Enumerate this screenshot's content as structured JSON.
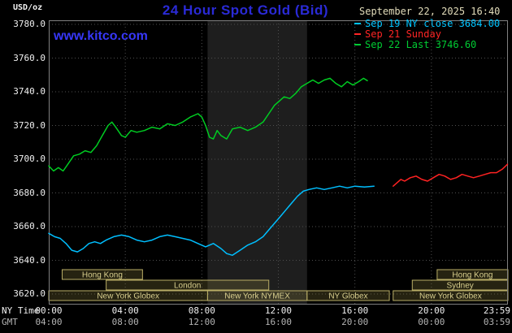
{
  "header": {
    "units_label": "USD/oz",
    "title": "24 Hour Spot Gold (Bid)",
    "timestamp": "September 22, 2025 16:40",
    "watermark": "www.kitco.com",
    "legend": [
      {
        "label": "Sep 19 NY close 3684.00",
        "color": "#00c4ff"
      },
      {
        "label": "Sep 21 Sunday",
        "color": "#ff2525"
      },
      {
        "label": "Sep 22 Last 3746.60",
        "color": "#00cc33"
      }
    ]
  },
  "axes": {
    "y_ticks": [
      "3780.0",
      "3760.0",
      "3740.0",
      "3720.0",
      "3700.0",
      "3680.0",
      "3660.0",
      "3640.0",
      "3620.0"
    ],
    "x_rows": [
      {
        "label": "NY Time",
        "ticks": [
          "00:00",
          "04:00",
          "08:00",
          "12:00",
          "16:00",
          "20:00",
          "23:59"
        ]
      },
      {
        "label": "GMT",
        "ticks": [
          "04:00",
          "08:00",
          "12:00",
          "16:00",
          "20:00",
          "00:00",
          "03:59"
        ]
      }
    ]
  },
  "sessions": [
    {
      "row": 1,
      "start_h": 0.7,
      "end_h": 4.9,
      "label": "Hong Kong"
    },
    {
      "row": 1,
      "start_h": 20.3,
      "end_h": 24.0,
      "label": "Hong Kong"
    },
    {
      "row": 2,
      "start_h": 3.0,
      "end_h": 11.5,
      "label": "London"
    },
    {
      "row": 2,
      "start_h": 19.0,
      "end_h": 24.0,
      "label": "Sydney"
    },
    {
      "row": 3,
      "start_h": 0.0,
      "end_h": 8.3,
      "label": "New York Globex"
    },
    {
      "row": 3,
      "start_h": 8.3,
      "end_h": 13.5,
      "label": "New York NYMEX"
    },
    {
      "row": 3,
      "start_h": 13.5,
      "end_h": 17.8,
      "label": "NY Globex"
    },
    {
      "row": 3,
      "start_h": 18.0,
      "end_h": 24.0,
      "label": "New York Globex"
    }
  ],
  "colors": {
    "background": "#000000",
    "frame": "#808080",
    "grid": "#4f4f4f",
    "nymex_band": "#1e1e1e",
    "title_blue": "#2a2ad6",
    "link_blue": "#3737f8",
    "timestamp_cream": "#e2dcba",
    "axis_text": "#f0f0f0",
    "gmt_text": "#b4b4b4",
    "session_border": "#b9ae66",
    "session_fill": "rgba(125,115,55,0.30)",
    "session_text": "#d9cf8e"
  },
  "chart_data": {
    "type": "line",
    "title": "24 Hour Spot Gold (Bid)",
    "xlabel": "NY Time",
    "ylabel": "USD/oz",
    "ylim": [
      3620,
      3780
    ],
    "xlim_hours": [
      0,
      24
    ],
    "x_ticks_hours": [
      0,
      4,
      8,
      12,
      16,
      20,
      24
    ],
    "grid": true,
    "legend_position": "top-right",
    "highlight_band_hours": [
      8.3,
      13.5
    ],
    "series": [
      {
        "name": "Sep 19 NY close",
        "color": "#00bfff",
        "close_value": 3684.0,
        "points": [
          [
            0,
            3656
          ],
          [
            0.3,
            3654
          ],
          [
            0.6,
            3653
          ],
          [
            0.9,
            3650
          ],
          [
            1.2,
            3646
          ],
          [
            1.5,
            3645
          ],
          [
            1.8,
            3647
          ],
          [
            2.1,
            3650
          ],
          [
            2.4,
            3651
          ],
          [
            2.7,
            3650
          ],
          [
            3,
            3652
          ],
          [
            3.4,
            3654
          ],
          [
            3.8,
            3655
          ],
          [
            4.2,
            3654
          ],
          [
            4.6,
            3652
          ],
          [
            5,
            3651
          ],
          [
            5.4,
            3652
          ],
          [
            5.8,
            3654
          ],
          [
            6.2,
            3655
          ],
          [
            6.6,
            3654
          ],
          [
            7,
            3653
          ],
          [
            7.4,
            3652
          ],
          [
            7.8,
            3650
          ],
          [
            8.2,
            3648
          ],
          [
            8.6,
            3650
          ],
          [
            9,
            3647
          ],
          [
            9.3,
            3644
          ],
          [
            9.6,
            3643
          ],
          [
            10,
            3646
          ],
          [
            10.4,
            3649
          ],
          [
            10.8,
            3651
          ],
          [
            11.2,
            3654
          ],
          [
            11.5,
            3658
          ],
          [
            11.8,
            3662
          ],
          [
            12.1,
            3666
          ],
          [
            12.4,
            3670
          ],
          [
            12.7,
            3674
          ],
          [
            13,
            3678
          ],
          [
            13.3,
            3681
          ],
          [
            13.6,
            3682
          ],
          [
            14,
            3683
          ],
          [
            14.4,
            3682
          ],
          [
            14.8,
            3683
          ],
          [
            15.2,
            3684
          ],
          [
            15.6,
            3683
          ],
          [
            16,
            3684
          ],
          [
            16.5,
            3683.5
          ],
          [
            17,
            3684
          ]
        ]
      },
      {
        "name": "Sep 21 Sunday",
        "color": "#ff2222",
        "points": [
          [
            18,
            3684
          ],
          [
            18.2,
            3686
          ],
          [
            18.4,
            3688
          ],
          [
            18.6,
            3687
          ],
          [
            18.9,
            3689
          ],
          [
            19.2,
            3690
          ],
          [
            19.5,
            3688
          ],
          [
            19.8,
            3687
          ],
          [
            20.1,
            3689
          ],
          [
            20.4,
            3691
          ],
          [
            20.7,
            3690
          ],
          [
            21,
            3688
          ],
          [
            21.3,
            3689
          ],
          [
            21.6,
            3691
          ],
          [
            21.9,
            3690
          ],
          [
            22.2,
            3689
          ],
          [
            22.5,
            3690
          ],
          [
            22.8,
            3691
          ],
          [
            23.1,
            3692
          ],
          [
            23.4,
            3692
          ],
          [
            23.7,
            3694
          ],
          [
            23.98,
            3697
          ]
        ]
      },
      {
        "name": "Sep 22 Last",
        "color": "#00cc22",
        "last_value": 3746.6,
        "points": [
          [
            0,
            3696
          ],
          [
            0.25,
            3693
          ],
          [
            0.5,
            3695
          ],
          [
            0.75,
            3693
          ],
          [
            1,
            3697
          ],
          [
            1.3,
            3702
          ],
          [
            1.6,
            3703
          ],
          [
            1.9,
            3705
          ],
          [
            2.2,
            3704
          ],
          [
            2.5,
            3708
          ],
          [
            2.8,
            3714
          ],
          [
            3.1,
            3720
          ],
          [
            3.3,
            3722
          ],
          [
            3.5,
            3719
          ],
          [
            3.8,
            3714
          ],
          [
            4,
            3713
          ],
          [
            4.3,
            3717
          ],
          [
            4.6,
            3716
          ],
          [
            5,
            3717
          ],
          [
            5.4,
            3719
          ],
          [
            5.8,
            3718
          ],
          [
            6.2,
            3721
          ],
          [
            6.6,
            3720
          ],
          [
            7,
            3722
          ],
          [
            7.4,
            3725
          ],
          [
            7.8,
            3727
          ],
          [
            8,
            3725
          ],
          [
            8.2,
            3720
          ],
          [
            8.4,
            3713
          ],
          [
            8.6,
            3712
          ],
          [
            8.8,
            3717
          ],
          [
            9,
            3714
          ],
          [
            9.3,
            3712
          ],
          [
            9.6,
            3718
          ],
          [
            10,
            3719
          ],
          [
            10.4,
            3717
          ],
          [
            10.8,
            3719
          ],
          [
            11.2,
            3722
          ],
          [
            11.5,
            3727
          ],
          [
            11.8,
            3732
          ],
          [
            12,
            3734
          ],
          [
            12.3,
            3737
          ],
          [
            12.6,
            3736
          ],
          [
            12.9,
            3739
          ],
          [
            13.2,
            3743
          ],
          [
            13.5,
            3745
          ],
          [
            13.8,
            3747
          ],
          [
            14.1,
            3745
          ],
          [
            14.4,
            3747
          ],
          [
            14.7,
            3748
          ],
          [
            15,
            3745
          ],
          [
            15.3,
            3743
          ],
          [
            15.6,
            3746
          ],
          [
            15.9,
            3744
          ],
          [
            16.2,
            3746
          ],
          [
            16.45,
            3748
          ],
          [
            16.65,
            3746.6
          ]
        ]
      }
    ]
  }
}
